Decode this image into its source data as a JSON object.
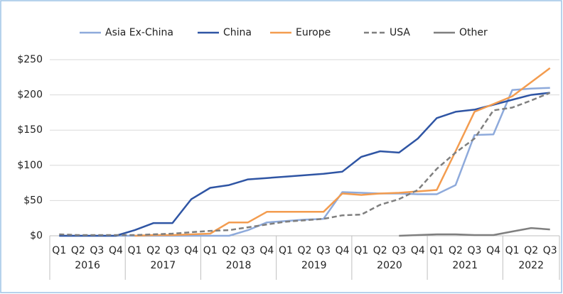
{
  "chart_data": {
    "type": "line",
    "years": [
      {
        "label": "2016",
        "quarters": [
          "Q1",
          "Q2",
          "Q3",
          "Q4"
        ]
      },
      {
        "label": "2017",
        "quarters": [
          "Q1",
          "Q2",
          "Q3",
          "Q4"
        ]
      },
      {
        "label": "2018",
        "quarters": [
          "Q1",
          "Q2",
          "Q3",
          "Q4"
        ]
      },
      {
        "label": "2019",
        "quarters": [
          "Q1",
          "Q2",
          "Q3",
          "Q4"
        ]
      },
      {
        "label": "2020",
        "quarters": [
          "Q1",
          "Q2",
          "Q3",
          "Q4"
        ]
      },
      {
        "label": "2021",
        "quarters": [
          "Q1",
          "Q2",
          "Q3",
          "Q4"
        ]
      },
      {
        "label": "2022",
        "quarters": [
          "Q1",
          "Q2",
          "Q3"
        ]
      }
    ],
    "series": [
      {
        "name": "Asia Ex-China",
        "color": "#8eaadb",
        "dash": false,
        "values": [
          0,
          0,
          0,
          0,
          0,
          0,
          0,
          0,
          0,
          0,
          8,
          19,
          21,
          23,
          24,
          62,
          61,
          60,
          60,
          59,
          59,
          72,
          143,
          144,
          207,
          209,
          210
        ]
      },
      {
        "name": "China",
        "color": "#2f55a4",
        "dash": false,
        "values": [
          0,
          0,
          0,
          0,
          8,
          18,
          18,
          52,
          68,
          72,
          80,
          82,
          84,
          86,
          88,
          91,
          112,
          120,
          118,
          138,
          167,
          176,
          179,
          186,
          193,
          200,
          203
        ]
      },
      {
        "name": "Europe",
        "color": "#f39c4f",
        "dash": false,
        "values": [
          null,
          null,
          null,
          null,
          0,
          1,
          1,
          2,
          3,
          19,
          19,
          34,
          34,
          34,
          34,
          60,
          58,
          60,
          61,
          63,
          65,
          120,
          176,
          187,
          198,
          218,
          238
        ]
      },
      {
        "name": "USA",
        "color": "#7f7f7f",
        "dash": true,
        "values": [
          2,
          1,
          1,
          1,
          1,
          2,
          3,
          5,
          7,
          8,
          12,
          16,
          20,
          22,
          24,
          29,
          30,
          44,
          52,
          65,
          95,
          118,
          138,
          178,
          182,
          192,
          203
        ]
      },
      {
        "name": "Other",
        "color": "#7f7f7f",
        "dash": false,
        "values": [
          null,
          null,
          null,
          null,
          null,
          null,
          null,
          null,
          null,
          null,
          null,
          null,
          null,
          null,
          null,
          null,
          null,
          null,
          0,
          1,
          2,
          2,
          1,
          1,
          6,
          11,
          9
        ]
      }
    ],
    "ylim": [
      0,
      250
    ],
    "yticks": [
      {
        "value": 0,
        "label": "$0"
      },
      {
        "value": 50,
        "label": "$50"
      },
      {
        "value": 100,
        "label": "$100"
      },
      {
        "value": 150,
        "label": "$150"
      },
      {
        "value": 200,
        "label": "$200"
      },
      {
        "value": 250,
        "label": "$250"
      }
    ],
    "grid": true,
    "legend": "top"
  }
}
